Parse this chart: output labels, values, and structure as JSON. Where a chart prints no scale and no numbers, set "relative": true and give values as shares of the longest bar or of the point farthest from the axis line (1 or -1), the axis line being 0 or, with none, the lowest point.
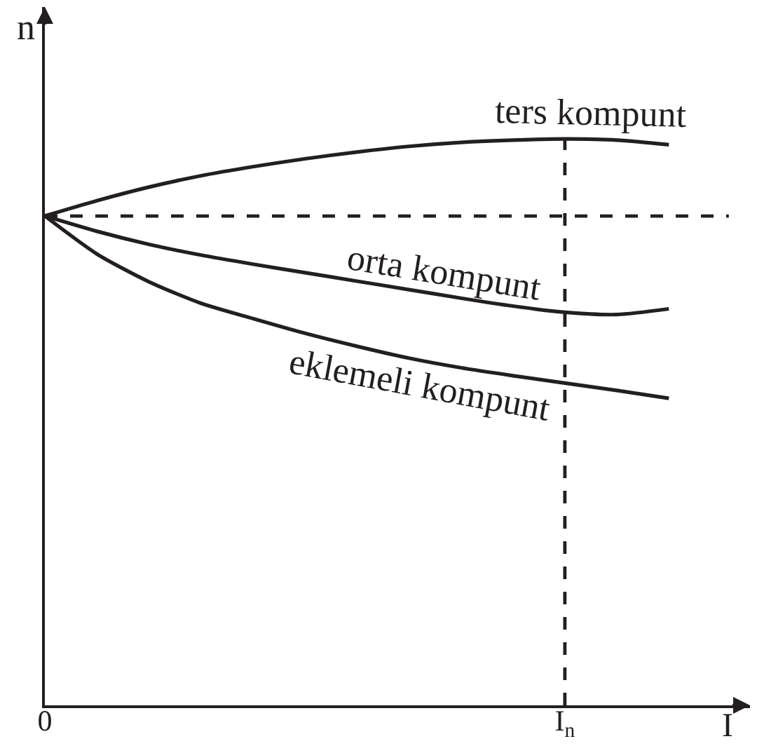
{
  "chart_data": {
    "type": "line",
    "relative": true,
    "xlabel": "I",
    "ylabel": "n",
    "categories": [
      "0",
      null,
      null,
      null,
      null,
      null,
      null,
      null,
      null,
      null,
      "I$_{n}$",
      null,
      null
    ],
    "series": [
      {
        "name": "ters kompunt",
        "color": "#231f20",
        "values": [
          0.864,
          0.891,
          0.915,
          0.935,
          0.951,
          0.965,
          0.977,
          0.987,
          0.994,
          0.998,
          1.0,
          0.998,
          0.99
        ]
      },
      {
        "name": "orta kompunt",
        "color": "#231f20",
        "values": [
          0.864,
          0.837,
          0.814,
          0.795,
          0.779,
          0.764,
          0.749,
          0.734,
          0.719,
          0.705,
          0.694,
          0.69,
          0.7
        ]
      },
      {
        "name": "eklemeli kompunt",
        "color": "#231f20",
        "values": [
          0.864,
          0.797,
          0.748,
          0.71,
          0.683,
          0.657,
          0.634,
          0.613,
          0.596,
          0.582,
          0.569,
          0.556,
          0.542
        ]
      }
    ],
    "ref_lines": [
      {
        "axis": "x",
        "value": "I$_{n}$",
        "line_style": "dashed",
        "color": "#231f20"
      },
      {
        "axis": "y",
        "value": 0.864,
        "line_style": "dashed",
        "color": "#231f20"
      }
    ],
    "legend": false,
    "line_style": "solid"
  }
}
